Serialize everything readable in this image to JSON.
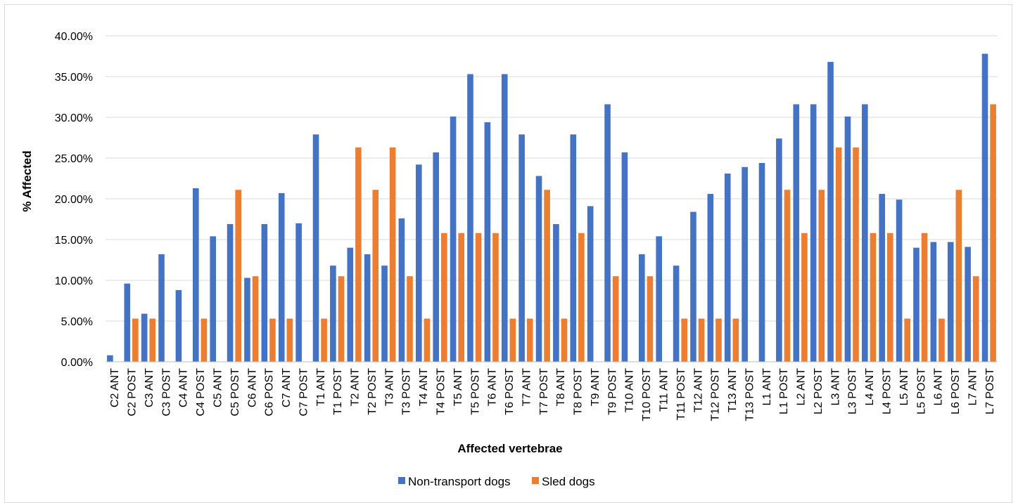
{
  "chart_data": {
    "type": "bar",
    "title": "",
    "xlabel": "Affected vertebrae",
    "ylabel": "% Affected",
    "ylim": [
      0,
      0.4
    ],
    "yticks": [
      "0.00%",
      "5.00%",
      "10.00%",
      "15.00%",
      "20.00%",
      "25.00%",
      "30.00%",
      "35.00%",
      "40.00%"
    ],
    "grid": true,
    "legend_position": "bottom",
    "colors": {
      "Non-transport dogs": "#4472C4",
      "Sled dogs": "#ED7D31",
      "grid": "#d9d9d9",
      "axis": "#bfbfbf"
    },
    "categories": [
      "C2 ANT",
      "C2 POST",
      "C3 ANT",
      "C3 POST",
      "C4 ANT",
      "C4 POST",
      "C5 ANT",
      "C5 POST",
      "C6 ANT",
      "C6 POST",
      "C7 ANT",
      "C7 POST",
      "T1 ANT",
      "T1 POST",
      "T2 ANT",
      "T2 POST",
      "T3 ANT",
      "T3 POST",
      "T4 ANT",
      "T4 POST",
      "T5 ANT",
      "T5 POST",
      "T6 ANT",
      "T6 POST",
      "T7 ANT",
      "T7 POST",
      "T8 ANT",
      "T8 POST",
      "T9 ANT",
      "T9 POST",
      "T10 ANT",
      "T10 POST",
      "T11 ANT",
      "T11 POST",
      "T12 ANT",
      "T12 POST",
      "T13 ANT",
      "T13 POST",
      "L1 ANT",
      "L1 POST",
      "L2 ANT",
      "L2 POST",
      "L3 ANT",
      "L3 POST",
      "L4 ANT",
      "L4 POST",
      "L5 ANT",
      "L5 POST",
      "L6 ANT",
      "L6 POST",
      "L7 ANT",
      "L7 POST"
    ],
    "series": [
      {
        "name": "Non-transport dogs",
        "values": [
          0.008,
          0.096,
          0.059,
          0.132,
          0.088,
          0.213,
          0.154,
          0.169,
          0.103,
          0.169,
          0.207,
          0.17,
          0.279,
          0.118,
          0.14,
          0.132,
          0.118,
          0.176,
          0.242,
          0.257,
          0.301,
          0.353,
          0.294,
          0.353,
          0.279,
          0.228,
          0.169,
          0.279,
          0.191,
          0.316,
          0.257,
          0.132,
          0.154,
          0.118,
          0.184,
          0.206,
          0.231,
          0.239,
          0.244,
          0.274,
          0.316,
          0.316,
          0.368,
          0.301,
          0.316,
          0.206,
          0.199,
          0.14,
          0.147,
          0.147,
          0.141,
          0.378
        ]
      },
      {
        "name": "Sled dogs",
        "values": [
          0,
          0.053,
          0.053,
          0,
          0,
          0.053,
          0,
          0.211,
          0.105,
          0.053,
          0.053,
          0,
          0.053,
          0.105,
          0.263,
          0.211,
          0.263,
          0.105,
          0.053,
          0.158,
          0.158,
          0.158,
          0.158,
          0.053,
          0.053,
          0.211,
          0.053,
          0.158,
          0,
          0.105,
          0,
          0.105,
          0,
          0.053,
          0.053,
          0.053,
          0.053,
          0,
          0,
          0.211,
          0.158,
          0.211,
          0.263,
          0.263,
          0.158,
          0.158,
          0.053,
          0.158,
          0.053,
          0.211,
          0.105,
          0.316
        ]
      }
    ]
  }
}
